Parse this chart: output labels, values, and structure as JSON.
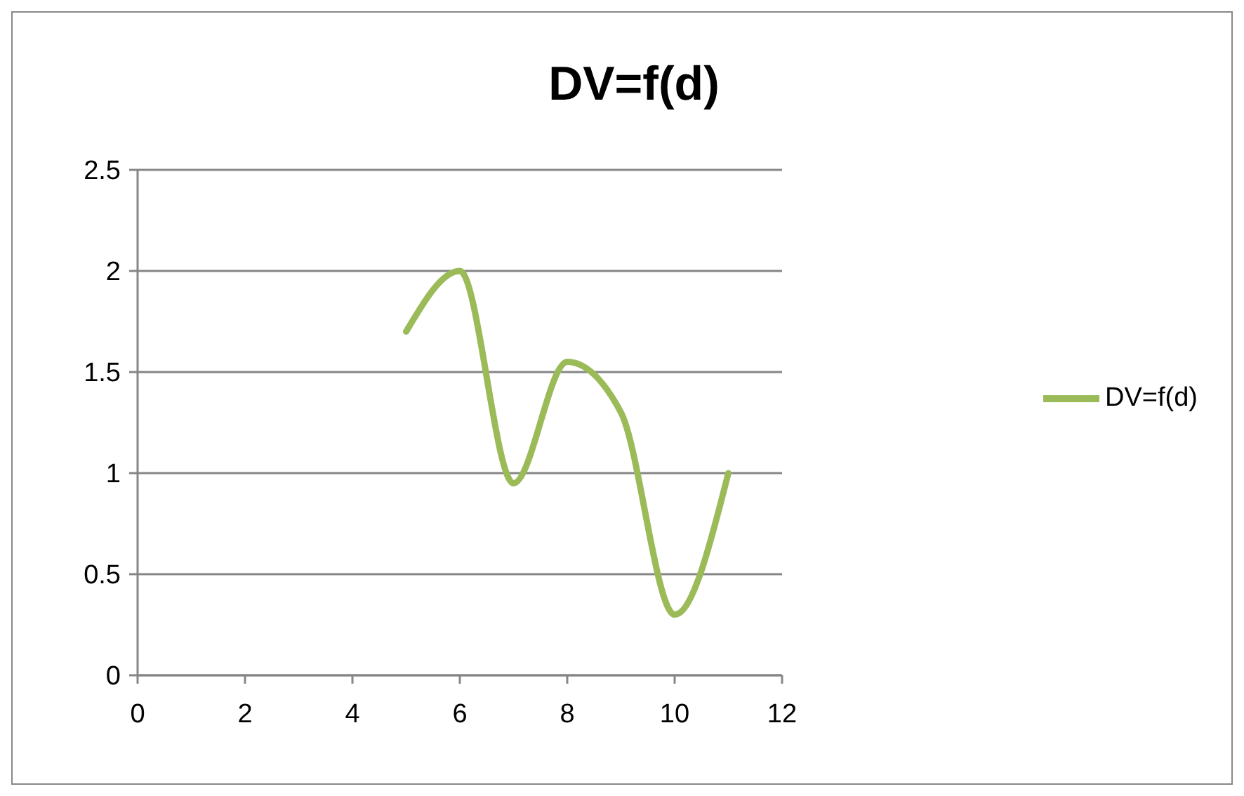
{
  "chart_data": {
    "type": "line",
    "title": "DV=f(d)",
    "x": [
      5,
      6,
      7,
      8,
      9,
      10,
      11
    ],
    "series": [
      {
        "name": "DV=f(d)",
        "color": "#9bbb59",
        "values": [
          1.7,
          2.0,
          0.95,
          1.55,
          1.3,
          0.3,
          1.0
        ]
      }
    ],
    "xlim": [
      0,
      12
    ],
    "xticks": [
      0,
      2,
      4,
      6,
      8,
      10,
      12
    ],
    "ylim": [
      0,
      2.5
    ],
    "yticks": [
      0,
      0.5,
      1,
      1.5,
      2,
      2.5
    ],
    "grid": "y",
    "legend": "right",
    "marker": "none"
  }
}
